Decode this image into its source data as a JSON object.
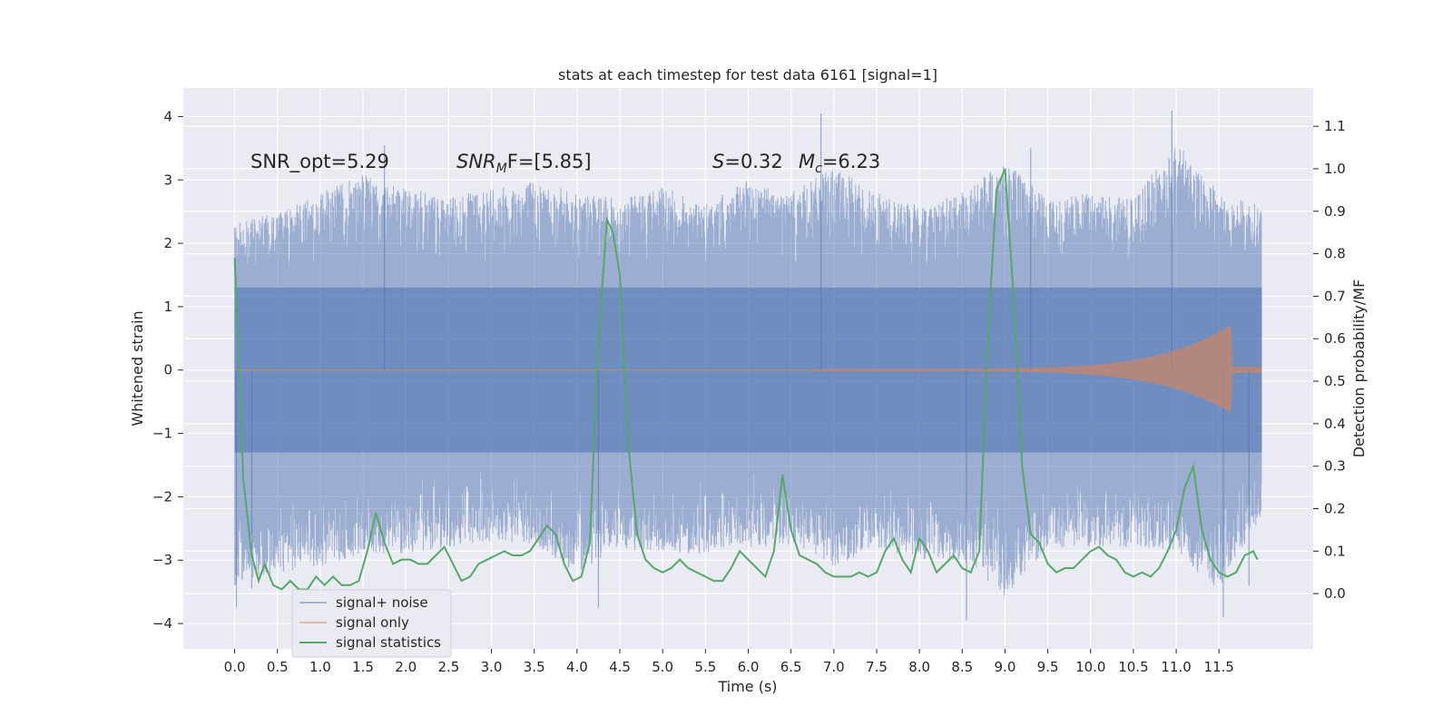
{
  "chart_data": {
    "type": "line",
    "title": "stats at each timestep for test data 6161 [signal=1]",
    "xlabel": "Time (s)",
    "ylabel": "Whitened strain",
    "y2label": "Detection probability/MF",
    "xlim": [
      -0.6,
      12.6
    ],
    "ylim": [
      -4.4,
      4.45
    ],
    "y2lim": [
      -0.13,
      1.19
    ],
    "xticks": [
      0.0,
      0.5,
      1.0,
      1.5,
      2.0,
      2.5,
      3.0,
      3.5,
      4.0,
      4.5,
      5.0,
      5.5,
      6.0,
      6.5,
      7.0,
      7.5,
      8.0,
      8.5,
      9.0,
      9.5,
      10.0,
      10.5,
      11.0,
      11.5
    ],
    "xtick_labels": [
      "0.0",
      "0.5",
      "1.0",
      "1.5",
      "2.0",
      "2.5",
      "3.0",
      "3.5",
      "4.0",
      "4.5",
      "5.0",
      "5.5",
      "6.0",
      "6.5",
      "7.0",
      "7.5",
      "8.0",
      "8.5",
      "9.0",
      "9.5",
      "10.0",
      "10.5",
      "11.0",
      "11.5"
    ],
    "yticks": [
      4,
      3,
      2,
      1,
      0,
      -1,
      -2,
      -3,
      -4
    ],
    "ytick_labels": [
      "4",
      "3",
      "2",
      "1",
      "0",
      "−1",
      "−2",
      "−3",
      "−4"
    ],
    "y2ticks": [
      1.1,
      1.0,
      0.9,
      0.8,
      0.7,
      0.6,
      0.5,
      0.4,
      0.3,
      0.2,
      0.1,
      0.0
    ],
    "y2tick_labels": [
      "1.1",
      "1.0",
      "0.9",
      "0.8",
      "0.7",
      "0.6",
      "0.5",
      "0.4",
      "0.3",
      "0.2",
      "0.1",
      "0.0"
    ],
    "grid": true,
    "legend_position": "lower-left",
    "annotations": {
      "snr_opt": "SNR_opt=5.29",
      "snr_mf_main": "SNR",
      "snr_mf_sub": "M",
      "snr_mf_rest": "F=[5.85]",
      "s_label": "S",
      "s_value": "=0.32",
      "mc_main": "M",
      "mc_sub": "c",
      "mc_value": "=6.23"
    },
    "series": [
      {
        "name": "signal+ noise",
        "color": "#4c72b0",
        "kind": "noise band",
        "t_range": [
          0.0,
          12.0
        ],
        "core_band": [
          -1.3,
          1.3
        ],
        "upper_envelope": {
          "t": [
            0.0,
            0.5,
            1.0,
            1.5,
            2.0,
            2.5,
            3.0,
            3.5,
            4.0,
            4.5,
            5.0,
            5.5,
            6.0,
            6.5,
            7.0,
            7.5,
            8.0,
            8.5,
            9.0,
            9.5,
            10.0,
            10.5,
            11.0,
            11.5,
            12.0
          ],
          "v": [
            2.3,
            2.5,
            2.8,
            3.1,
            2.9,
            2.7,
            2.9,
            3.0,
            2.8,
            2.7,
            2.9,
            2.6,
            3.0,
            2.8,
            3.2,
            2.8,
            2.6,
            2.8,
            3.3,
            2.7,
            2.8,
            2.7,
            3.6,
            2.8,
            2.6
          ]
        },
        "lower_envelope": {
          "t": [
            0.0,
            0.5,
            1.0,
            1.5,
            2.0,
            2.5,
            3.0,
            3.5,
            4.0,
            4.5,
            5.0,
            5.5,
            6.0,
            6.5,
            7.0,
            7.5,
            8.0,
            8.5,
            9.0,
            9.5,
            10.0,
            10.5,
            11.0,
            11.5,
            12.0
          ],
          "v": [
            -3.4,
            -3.2,
            -3.1,
            -2.9,
            -2.9,
            -2.8,
            -2.7,
            -2.8,
            -3.2,
            -2.8,
            -2.9,
            -2.9,
            -2.8,
            -2.8,
            -3.1,
            -2.8,
            -3.0,
            -3.0,
            -3.6,
            -2.8,
            -2.8,
            -2.8,
            -2.9,
            -3.5,
            -2.3
          ]
        },
        "peaks": [
          [
            0.02,
            -3.75
          ],
          [
            0.2,
            -3.45
          ],
          [
            1.75,
            3.55
          ],
          [
            4.25,
            -3.75
          ],
          [
            6.85,
            4.05
          ],
          [
            8.55,
            -3.95
          ],
          [
            9.3,
            3.5
          ],
          [
            10.95,
            4.1
          ],
          [
            11.55,
            -3.9
          ],
          [
            11.85,
            -3.4
          ]
        ]
      },
      {
        "name": "signal only",
        "color": "#dd8452",
        "kind": "chirp",
        "t_start": 6.8,
        "t_merger": 11.65,
        "t_end": 12.0,
        "peak_amplitude": 0.72,
        "ringdown_amplitude": 0.05
      },
      {
        "name": "signal statistics",
        "color": "#55a868",
        "axis": "right",
        "x": [
          0.0,
          0.05,
          0.1,
          0.2,
          0.28,
          0.35,
          0.45,
          0.55,
          0.65,
          0.75,
          0.85,
          0.95,
          1.05,
          1.15,
          1.25,
          1.35,
          1.45,
          1.55,
          1.65,
          1.75,
          1.85,
          1.95,
          2.05,
          2.15,
          2.25,
          2.35,
          2.45,
          2.55,
          2.65,
          2.75,
          2.85,
          2.95,
          3.05,
          3.15,
          3.25,
          3.35,
          3.45,
          3.55,
          3.65,
          3.75,
          3.85,
          3.95,
          4.05,
          4.15,
          4.25,
          4.35,
          4.42,
          4.5,
          4.6,
          4.7,
          4.8,
          4.9,
          5.0,
          5.1,
          5.2,
          5.3,
          5.4,
          5.5,
          5.6,
          5.7,
          5.8,
          5.9,
          6.0,
          6.1,
          6.2,
          6.3,
          6.4,
          6.5,
          6.6,
          6.7,
          6.8,
          6.9,
          7.0,
          7.1,
          7.2,
          7.3,
          7.4,
          7.5,
          7.6,
          7.7,
          7.8,
          7.9,
          8.0,
          8.1,
          8.2,
          8.3,
          8.4,
          8.5,
          8.6,
          8.7,
          8.8,
          8.9,
          9.0,
          9.1,
          9.2,
          9.3,
          9.4,
          9.5,
          9.6,
          9.7,
          9.8,
          9.9,
          10.0,
          10.1,
          10.2,
          10.3,
          10.4,
          10.5,
          10.6,
          10.7,
          10.8,
          10.9,
          11.0,
          11.1,
          11.2,
          11.3,
          11.4,
          11.5,
          11.6,
          11.7,
          11.8,
          11.9,
          11.95
        ],
        "values": [
          0.79,
          0.55,
          0.27,
          0.09,
          0.03,
          0.07,
          0.02,
          0.01,
          0.03,
          0.01,
          0.01,
          0.04,
          0.02,
          0.04,
          0.02,
          0.02,
          0.03,
          0.1,
          0.19,
          0.12,
          0.07,
          0.08,
          0.08,
          0.07,
          0.07,
          0.09,
          0.11,
          0.07,
          0.03,
          0.04,
          0.07,
          0.08,
          0.09,
          0.1,
          0.09,
          0.09,
          0.1,
          0.13,
          0.16,
          0.14,
          0.07,
          0.03,
          0.04,
          0.12,
          0.6,
          0.88,
          0.85,
          0.75,
          0.35,
          0.14,
          0.08,
          0.06,
          0.05,
          0.06,
          0.08,
          0.06,
          0.05,
          0.04,
          0.03,
          0.03,
          0.06,
          0.1,
          0.08,
          0.06,
          0.04,
          0.1,
          0.28,
          0.15,
          0.09,
          0.08,
          0.07,
          0.05,
          0.04,
          0.04,
          0.04,
          0.05,
          0.04,
          0.05,
          0.1,
          0.13,
          0.08,
          0.05,
          0.13,
          0.1,
          0.05,
          0.07,
          0.09,
          0.06,
          0.05,
          0.1,
          0.6,
          0.95,
          1.0,
          0.7,
          0.3,
          0.14,
          0.12,
          0.07,
          0.05,
          0.06,
          0.06,
          0.08,
          0.1,
          0.11,
          0.09,
          0.08,
          0.05,
          0.04,
          0.05,
          0.04,
          0.06,
          0.1,
          0.15,
          0.25,
          0.3,
          0.15,
          0.08,
          0.05,
          0.04,
          0.05,
          0.09,
          0.1,
          0.08
        ]
      }
    ]
  }
}
